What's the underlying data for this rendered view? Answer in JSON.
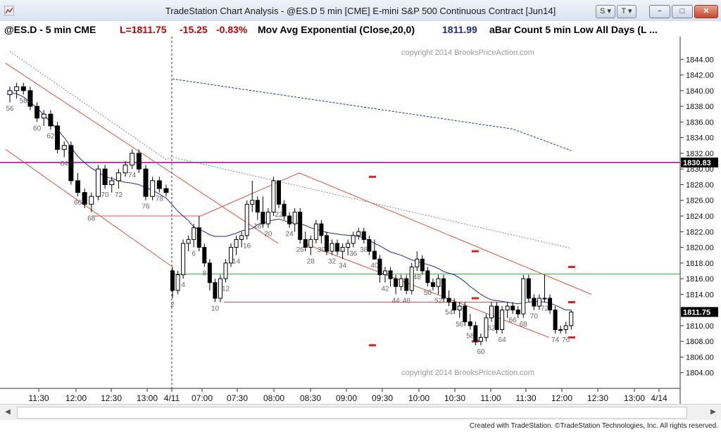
{
  "window": {
    "title": "TradeStation Chart Analysis - @ES.D 5 min [CME] E-mini S&P 500 Continuous Contract [Jun14]",
    "s_button": "S",
    "t_button": "T",
    "minimize": "−",
    "maximize": "□",
    "close": "✕"
  },
  "info": {
    "symbol": "@ES.D - 5 min  CME",
    "last": "L=1811.75",
    "change": "-15.25",
    "pct": "-0.83%",
    "study": "Mov Avg Exponential (Close,20,0)",
    "study_value": "1811.99",
    "bar_count": "aBar Count 5 min Low All Days (L ..."
  },
  "colors": {
    "up": "#ffffff",
    "down": "#000000",
    "ema": "#1f2a9c",
    "magenta_line": "#cc33cc",
    "green_line": "#33aa33",
    "channel": "#dd5544",
    "marker": "#dd2222",
    "price_tag_bg": "#000000"
  },
  "chart_data": {
    "type": "candlestick",
    "yaxis": {
      "min": 1802,
      "max": 1846,
      "ticks": [
        1804,
        1806,
        1808,
        1810,
        1812,
        1814,
        1816,
        1818,
        1820,
        1822,
        1824,
        1826,
        1828,
        1830,
        1832,
        1834,
        1836,
        1838,
        1840,
        1842,
        1844
      ]
    },
    "xaxis_labels": [
      "11:30",
      "12:00",
      "12:30",
      "13:00",
      "4/11",
      "07:00",
      "07:30",
      "08:00",
      "08:30",
      "09:00",
      "09:30",
      "10:00",
      "10:30",
      "11:00",
      "11:30",
      "12:00",
      "12:30",
      "13:00",
      "4/14"
    ],
    "copyright": "copyright 2014 BrooksPriceAction.com",
    "last_price_tag": "1811.75",
    "magenta_price_tag": "1830.83",
    "magenta_level": 1830.83,
    "green_level": 1816.6,
    "day1": [
      [
        1839.5,
        1840.5,
        1838.5,
        1840.0
      ],
      [
        1840.0,
        1841.0,
        1839.0,
        1840.5
      ],
      [
        1840.5,
        1841.0,
        1839.5,
        1840.0
      ],
      [
        1840.0,
        1840.5,
        1837.5,
        1838.0
      ],
      [
        1838.0,
        1838.5,
        1836.0,
        1836.5
      ],
      [
        1836.5,
        1837.5,
        1835.5,
        1837.0
      ],
      [
        1837.0,
        1837.5,
        1835.0,
        1835.5
      ],
      [
        1835.5,
        1836.0,
        1832.0,
        1832.5
      ],
      [
        1832.5,
        1833.5,
        1831.5,
        1833.0
      ],
      [
        1833.0,
        1833.5,
        1828.0,
        1828.5
      ],
      [
        1828.5,
        1829.5,
        1826.5,
        1827.0
      ],
      [
        1827.0,
        1827.5,
        1825.0,
        1825.5
      ],
      [
        1825.5,
        1827.0,
        1824.5,
        1826.5
      ],
      [
        1826.5,
        1830.5,
        1826.0,
        1830.0
      ],
      [
        1830.0,
        1830.5,
        1827.5,
        1828.0
      ],
      [
        1828.0,
        1829.0,
        1827.0,
        1828.5
      ],
      [
        1828.5,
        1830.0,
        1827.5,
        1829.5
      ],
      [
        1829.5,
        1831.0,
        1829.0,
        1830.5
      ],
      [
        1830.5,
        1832.5,
        1830.0,
        1832.0
      ],
      [
        1832.0,
        1832.5,
        1829.5,
        1830.0
      ],
      [
        1830.0,
        1830.5,
        1826.0,
        1826.5
      ],
      [
        1826.5,
        1829.0,
        1826.0,
        1828.5
      ],
      [
        1828.5,
        1829.0,
        1827.0,
        1827.5
      ],
      [
        1827.5,
        1828.0,
        1826.5,
        1827.0
      ]
    ],
    "day2": [
      [
        1817.0,
        1817.5,
        1813.5,
        1814.5
      ],
      [
        1814.5,
        1817.0,
        1814.0,
        1816.5
      ],
      [
        1816.5,
        1821.0,
        1816.0,
        1820.5
      ],
      [
        1820.5,
        1821.5,
        1819.5,
        1821.0
      ],
      [
        1821.0,
        1823.0,
        1820.0,
        1822.5
      ],
      [
        1822.5,
        1824.0,
        1819.5,
        1820.0
      ],
      [
        1820.0,
        1820.5,
        1817.5,
        1818.0
      ],
      [
        1818.0,
        1818.5,
        1814.5,
        1815.5
      ],
      [
        1815.5,
        1816.0,
        1813.0,
        1813.5
      ],
      [
        1813.5,
        1816.5,
        1813.0,
        1816.0
      ],
      [
        1816.0,
        1818.5,
        1815.5,
        1818.0
      ],
      [
        1818.0,
        1820.5,
        1817.5,
        1820.0
      ],
      [
        1820.0,
        1821.5,
        1819.0,
        1821.0
      ],
      [
        1821.0,
        1822.0,
        1820.0,
        1821.5
      ],
      [
        1821.5,
        1826.0,
        1821.0,
        1825.5
      ],
      [
        1825.5,
        1828.5,
        1824.5,
        1826.0
      ],
      [
        1826.0,
        1826.5,
        1823.5,
        1824.5
      ],
      [
        1824.5,
        1826.5,
        1822.5,
        1823.0
      ],
      [
        1823.0,
        1825.0,
        1822.5,
        1824.5
      ],
      [
        1824.5,
        1829.0,
        1824.0,
        1828.5
      ],
      [
        1828.5,
        1828.5,
        1825.0,
        1825.5
      ],
      [
        1825.5,
        1826.0,
        1823.5,
        1824.0
      ],
      [
        1824.0,
        1824.5,
        1822.5,
        1823.0
      ],
      [
        1823.0,
        1825.0,
        1822.0,
        1824.5
      ],
      [
        1824.5,
        1825.0,
        1820.5,
        1821.0
      ],
      [
        1821.0,
        1822.0,
        1819.5,
        1820.0
      ],
      [
        1820.0,
        1821.5,
        1819.0,
        1821.0
      ],
      [
        1821.0,
        1823.5,
        1820.5,
        1823.0
      ],
      [
        1823.0,
        1823.5,
        1820.5,
        1821.5
      ],
      [
        1821.5,
        1822.0,
        1819.0,
        1819.5
      ],
      [
        1819.5,
        1821.0,
        1819.0,
        1820.5
      ],
      [
        1820.5,
        1821.0,
        1819.0,
        1819.5
      ],
      [
        1819.5,
        1820.5,
        1818.5,
        1820.0
      ],
      [
        1820.0,
        1821.0,
        1819.0,
        1820.5
      ],
      [
        1820.5,
        1822.0,
        1820.0,
        1821.5
      ],
      [
        1821.5,
        1822.5,
        1821.0,
        1822.0
      ],
      [
        1822.0,
        1822.5,
        1820.5,
        1821.0
      ],
      [
        1821.0,
        1821.5,
        1819.0,
        1819.5
      ],
      [
        1819.5,
        1821.0,
        1818.5,
        1818.5
      ],
      [
        1818.5,
        1819.0,
        1815.5,
        1816.5
      ],
      [
        1816.5,
        1817.5,
        1815.5,
        1817.0
      ],
      [
        1817.0,
        1817.5,
        1815.0,
        1816.0
      ],
      [
        1816.0,
        1816.5,
        1814.0,
        1815.0
      ],
      [
        1815.0,
        1816.5,
        1814.5,
        1816.0
      ],
      [
        1816.0,
        1816.5,
        1814.0,
        1814.5
      ],
      [
        1814.5,
        1818.0,
        1814.0,
        1817.5
      ],
      [
        1817.5,
        1819.5,
        1817.0,
        1818.5
      ],
      [
        1818.5,
        1819.0,
        1816.5,
        1817.0
      ],
      [
        1817.0,
        1817.5,
        1815.0,
        1815.5
      ],
      [
        1815.5,
        1816.0,
        1814.5,
        1815.0
      ],
      [
        1815.0,
        1816.5,
        1814.0,
        1816.0
      ],
      [
        1816.0,
        1816.5,
        1813.0,
        1813.5
      ],
      [
        1813.5,
        1814.5,
        1812.5,
        1813.0
      ],
      [
        1813.0,
        1813.5,
        1811.5,
        1812.0
      ],
      [
        1812.0,
        1813.0,
        1811.0,
        1812.5
      ],
      [
        1812.5,
        1813.0,
        1810.0,
        1810.5
      ],
      [
        1810.5,
        1811.5,
        1809.5,
        1810.0
      ],
      [
        1810.0,
        1810.5,
        1807.5,
        1808.0
      ],
      [
        1808.0,
        1809.0,
        1807.5,
        1808.5
      ],
      [
        1808.5,
        1811.5,
        1808.0,
        1811.0
      ],
      [
        1811.0,
        1813.0,
        1810.5,
        1812.5
      ],
      [
        1812.5,
        1813.0,
        1809.0,
        1809.5
      ],
      [
        1809.5,
        1812.5,
        1809.0,
        1812.0
      ],
      [
        1812.0,
        1813.0,
        1811.0,
        1812.5
      ],
      [
        1812.5,
        1813.0,
        1811.5,
        1812.0
      ],
      [
        1812.0,
        1812.5,
        1811.0,
        1811.5
      ],
      [
        1811.5,
        1816.5,
        1811.0,
        1816.0
      ],
      [
        1816.0,
        1816.5,
        1813.0,
        1813.5
      ],
      [
        1813.5,
        1814.0,
        1812.0,
        1812.5
      ],
      [
        1812.5,
        1814.0,
        1812.0,
        1813.5
      ],
      [
        1813.5,
        1816.5,
        1813.0,
        1813.5
      ],
      [
        1813.5,
        1814.0,
        1811.5,
        1812.0
      ],
      [
        1812.0,
        1812.5,
        1809.0,
        1809.5
      ],
      [
        1809.5,
        1810.0,
        1809.0,
        1809.5
      ],
      [
        1809.5,
        1810.5,
        1809.0,
        1810.0
      ],
      [
        1810.0,
        1812.0,
        1809.5,
        1811.75
      ]
    ],
    "ema": [
      1839.8,
      1839.6,
      1839.2,
      1838.5,
      1837.8,
      1836.9,
      1836.0,
      1835.0,
      1834.0,
      1832.8,
      1831.6,
      1830.8,
      1830.1,
      1829.6,
      1829.0,
      1828.8,
      1828.5,
      1828.3,
      1828.2,
      1828.0,
      1827.6,
      1827.3,
      1826.8,
      1826.3,
      1825.4,
      1824.6,
      1824.0,
      1823.4,
      1822.6,
      1822.0,
      1821.6,
      1821.4,
      1821.4,
      1821.4,
      1821.6,
      1821.8,
      1822.1,
      1822.4,
      1822.9,
      1823.1,
      1823.3,
      1823.5,
      1823.6,
      1823.4,
      1823.2,
      1823.0,
      1822.8,
      1822.5,
      1822.3,
      1822.1,
      1821.9,
      1821.8,
      1821.7,
      1821.6,
      1821.5,
      1821.4,
      1821.2,
      1820.9,
      1820.5,
      1820.2,
      1819.8,
      1819.4,
      1819.0,
      1818.7,
      1818.4,
      1818.2,
      1818.0,
      1817.8,
      1817.6,
      1817.3,
      1816.9,
      1816.5,
      1816.1,
      1815.6,
      1815.0,
      1814.5,
      1814.0,
      1813.6,
      1813.3,
      1813.1,
      1813.0,
      1812.9,
      1812.8,
      1812.9,
      1813.0,
      1813.1,
      1813.1,
      1812.9,
      1812.6,
      1812.3,
      1812.0,
      1812.0
    ],
    "bar_labels": [
      "56",
      "58",
      "60",
      "62",
      "64",
      "66",
      "68",
      "70",
      "72",
      "74",
      "76",
      "78",
      "2",
      "4",
      "6",
      "8",
      "10",
      "12",
      "14",
      "16",
      "18",
      "20",
      "22",
      "24",
      "26",
      "28",
      "30",
      "32",
      "34",
      "36",
      "38",
      "40",
      "42",
      "44",
      "46",
      "48",
      "50",
      "52",
      "54",
      "56",
      "58",
      "60",
      "62",
      "64",
      "66",
      "68",
      "70",
      "72",
      "74",
      "76",
      "78",
      "80"
    ]
  },
  "footer": "Created with TradeStation. ©TradeStation Technologies, Inc. All rights reserved."
}
